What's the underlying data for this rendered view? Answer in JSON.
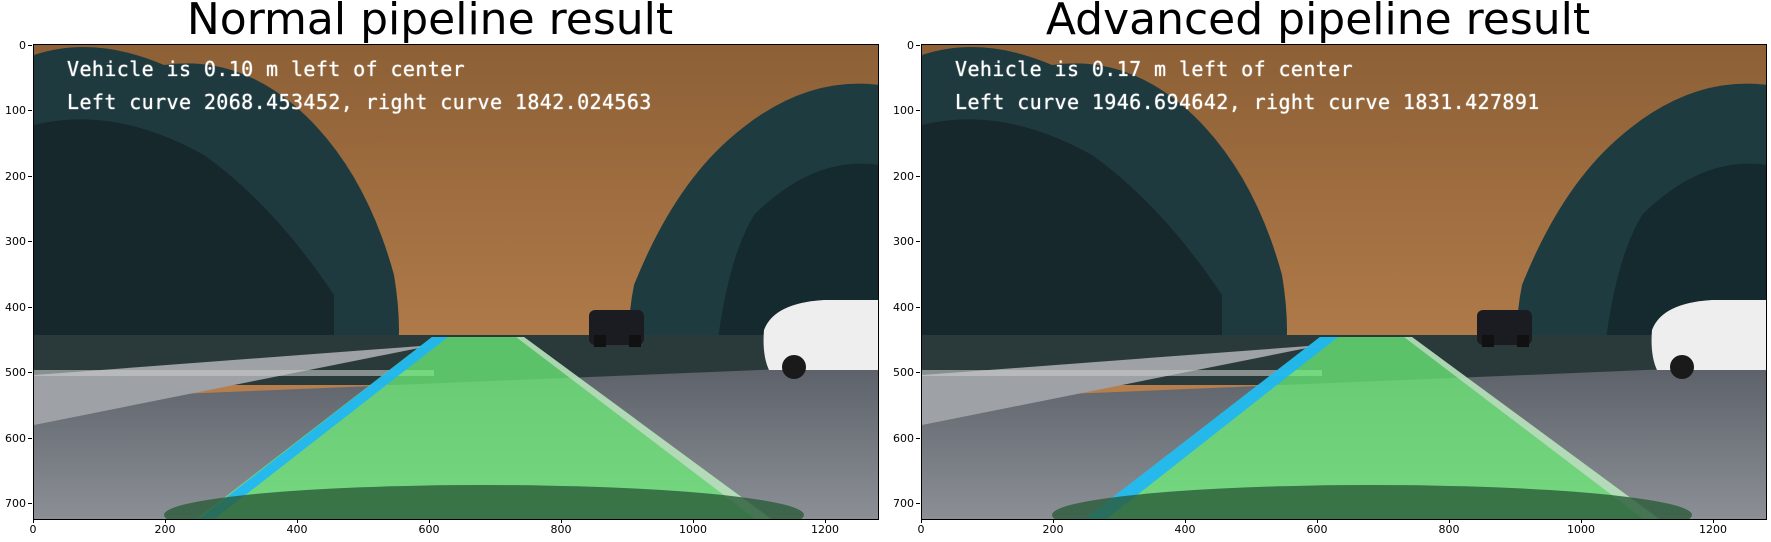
{
  "panels": [
    {
      "title": "Normal pipeline result",
      "overlay": {
        "line1": "Vehicle is 0.10 m left of center",
        "line2": "Left curve 2068.453452, right curve 1842.024563"
      }
    },
    {
      "title": "Advanced pipeline result",
      "overlay": {
        "line1": "Vehicle is 0.17 m left of center",
        "line2": "Left curve 1946.694642, right curve 1831.427891"
      }
    }
  ],
  "axes": {
    "y_ticks": [
      "0",
      "100",
      "200",
      "300",
      "400",
      "500",
      "600",
      "700"
    ],
    "x_ticks": [
      "0",
      "200",
      "400",
      "600",
      "800",
      "1000",
      "1200"
    ]
  },
  "colors": {
    "lane_fill": "#6ef07a",
    "left_line": "#19b4ff",
    "sky_top": "#9a6a3a",
    "sky_bottom": "#c58a55"
  }
}
